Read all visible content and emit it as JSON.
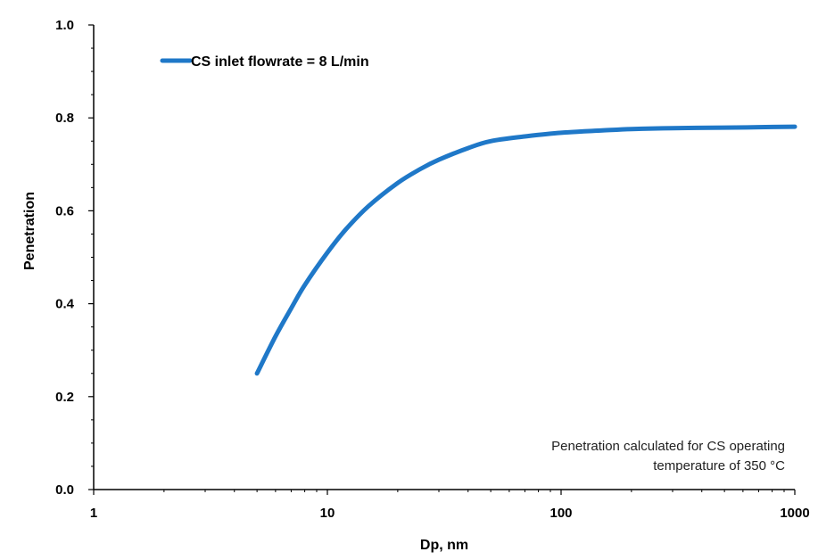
{
  "chart_data": {
    "type": "line",
    "xlabel": "Dp, nm",
    "ylabel": "Penetration",
    "xscale": "log",
    "xlim": [
      1,
      1000
    ],
    "ylim": [
      0,
      1.0
    ],
    "x_ticks": [
      1,
      10,
      100,
      1000
    ],
    "x_tick_labels": [
      "1",
      "10",
      "100",
      "1000"
    ],
    "y_ticks": [
      0,
      0.2,
      0.4,
      0.6,
      0.8,
      1.0
    ],
    "y_tick_labels": [
      "0.0",
      "0.2",
      "0.4",
      "0.6",
      "0.8",
      "1.0"
    ],
    "grid": false,
    "legend_position": "top-left",
    "series": [
      {
        "name": "CS inlet flowrate = 8 L/min",
        "color": "#1F78C8",
        "x": [
          5,
          6,
          7,
          8,
          10,
          12,
          15,
          20,
          25,
          30,
          40,
          50,
          70,
          100,
          150,
          200,
          300,
          500,
          700,
          1000
        ],
        "y": [
          0.25,
          0.33,
          0.39,
          0.44,
          0.51,
          0.56,
          0.61,
          0.66,
          0.69,
          0.71,
          0.735,
          0.75,
          0.76,
          0.768,
          0.773,
          0.776,
          0.778,
          0.779,
          0.78,
          0.781
        ]
      }
    ],
    "annotation": {
      "lines": [
        "Penetration calculated for CS operating",
        "temperature of 350 °C"
      ]
    }
  }
}
